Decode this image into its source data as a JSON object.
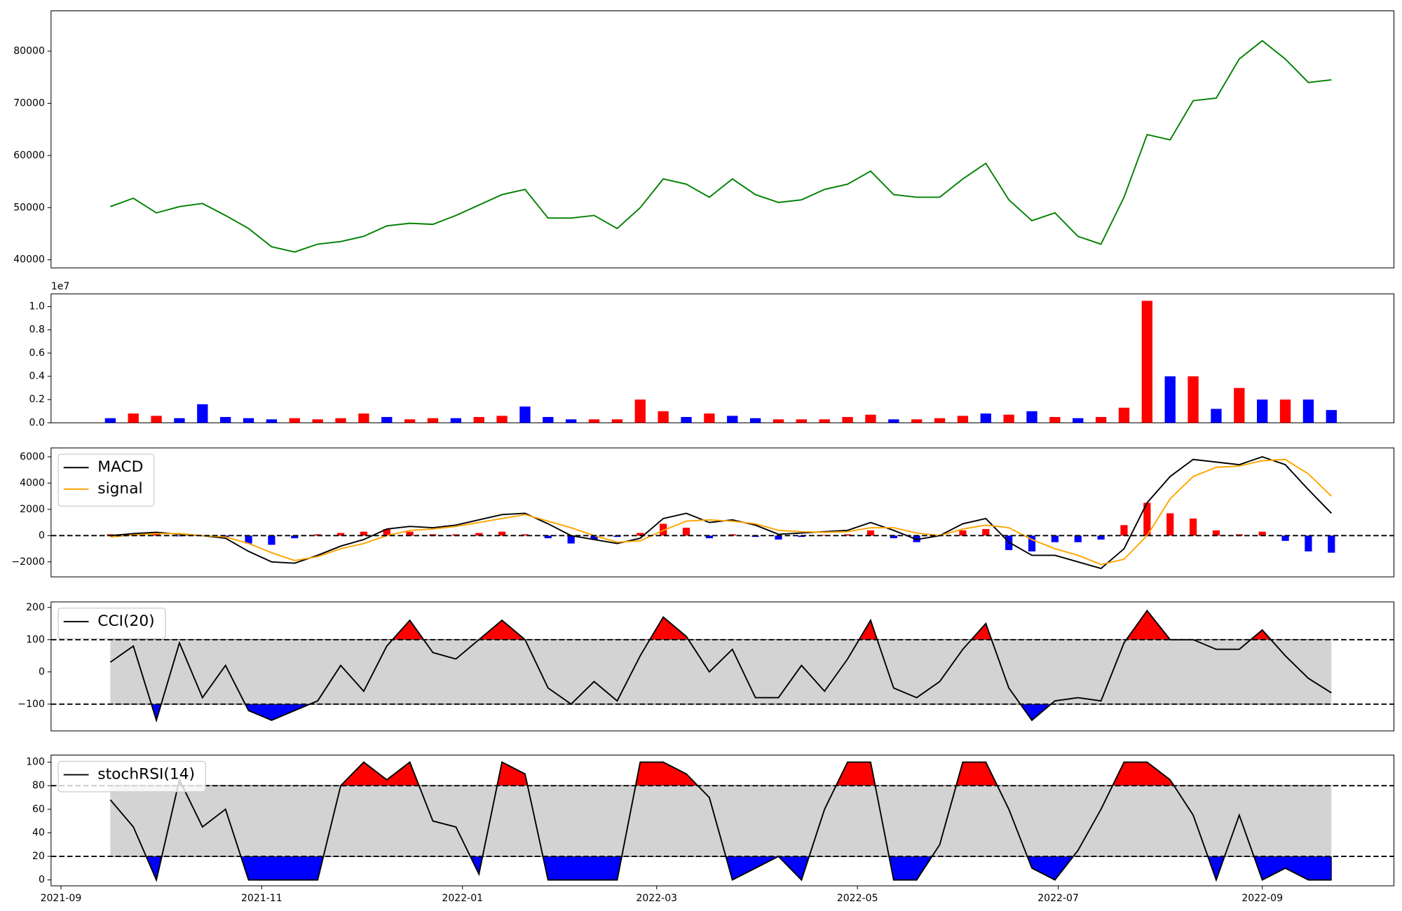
{
  "chart_data": [
    {
      "type": "line",
      "color": "#008000",
      "xlim": [
        18868,
        19276
      ],
      "ylim": [
        38450,
        87730
      ],
      "yticks": [
        40000,
        50000,
        60000,
        70000,
        80000
      ],
      "x": [
        18886,
        18893,
        18900,
        18907,
        18914,
        18921,
        18928,
        18935,
        18942,
        18949,
        18956,
        18963,
        18970,
        18977,
        18984,
        18991,
        18998,
        19005,
        19012,
        19019,
        19026,
        19033,
        19040,
        19047,
        19054,
        19061,
        19068,
        19075,
        19082,
        19089,
        19096,
        19103,
        19110,
        19117,
        19124,
        19131,
        19138,
        19145,
        19152,
        19159,
        19166,
        19173,
        19180,
        19187,
        19194,
        19201,
        19208,
        19215,
        19222,
        19229,
        19236,
        19243,
        19250,
        19257
      ],
      "values": [
        50200,
        51800,
        49000,
        50200,
        50800,
        48500,
        46000,
        42500,
        41500,
        43000,
        43500,
        44500,
        46500,
        47000,
        46800,
        48500,
        50500,
        52500,
        53500,
        48000,
        48000,
        48500,
        46000,
        50000,
        55500,
        54500,
        52000,
        55500,
        52500,
        51000,
        51500,
        53500,
        54500,
        57000,
        52500,
        52000,
        52000,
        55500,
        58500,
        51500,
        47500,
        49000,
        44500,
        43000,
        52000,
        64000,
        63000,
        70500,
        71000,
        78500,
        82000,
        78500,
        74000,
        74500
      ]
    },
    {
      "type": "bar",
      "offset_label": "1e7",
      "xlim": [
        18868,
        19276
      ],
      "ylim": [
        0,
        1.11
      ],
      "yticks": [
        {
          "value": 0,
          "label": "0.0"
        },
        {
          "value": 0.2,
          "label": "0.2"
        },
        {
          "value": 0.4,
          "label": "0.4"
        },
        {
          "value": 0.6,
          "label": "0.6"
        },
        {
          "value": 0.8,
          "label": "0.8"
        },
        {
          "value": 1,
          "label": "1.0"
        }
      ],
      "x": [
        18886,
        18893,
        18900,
        18907,
        18914,
        18921,
        18928,
        18935,
        18942,
        18949,
        18956,
        18963,
        18970,
        18977,
        18984,
        18991,
        18998,
        19005,
        19012,
        19019,
        19026,
        19033,
        19040,
        19047,
        19054,
        19061,
        19068,
        19075,
        19082,
        19089,
        19096,
        19103,
        19110,
        19117,
        19124,
        19131,
        19138,
        19145,
        19152,
        19159,
        19166,
        19173,
        19180,
        19187,
        19194,
        19201,
        19208,
        19215,
        19222,
        19229,
        19236,
        19243,
        19250,
        19257
      ],
      "values": [
        0.04,
        0.08,
        0.06,
        0.04,
        0.16,
        0.05,
        0.04,
        0.03,
        0.04,
        0.03,
        0.04,
        0.08,
        0.05,
        0.03,
        0.04,
        0.04,
        0.05,
        0.06,
        0.14,
        0.05,
        0.03,
        0.03,
        0.03,
        0.2,
        0.1,
        0.05,
        0.08,
        0.06,
        0.04,
        0.03,
        0.03,
        0.03,
        0.05,
        0.07,
        0.03,
        0.03,
        0.04,
        0.06,
        0.08,
        0.07,
        0.1,
        0.05,
        0.04,
        0.05,
        0.13,
        1.05,
        0.4,
        0.4,
        0.12,
        0.3,
        0.2,
        0.2,
        0.2,
        0.11
      ],
      "colors": [
        "#0000ff",
        "#ff0000",
        "#ff0000",
        "#0000ff",
        "#0000ff",
        "#0000ff",
        "#0000ff",
        "#0000ff",
        "#ff0000",
        "#ff0000",
        "#ff0000",
        "#ff0000",
        "#0000ff",
        "#ff0000",
        "#ff0000",
        "#0000ff",
        "#ff0000",
        "#ff0000",
        "#0000ff",
        "#0000ff",
        "#0000ff",
        "#ff0000",
        "#ff0000",
        "#ff0000",
        "#ff0000",
        "#0000ff",
        "#ff0000",
        "#0000ff",
        "#0000ff",
        "#ff0000",
        "#ff0000",
        "#ff0000",
        "#ff0000",
        "#ff0000",
        "#0000ff",
        "#ff0000",
        "#ff0000",
        "#ff0000",
        "#0000ff",
        "#ff0000",
        "#0000ff",
        "#ff0000",
        "#0000ff",
        "#ff0000",
        "#ff0000",
        "#ff0000",
        "#0000ff",
        "#ff0000",
        "#0000ff",
        "#ff0000",
        "#0000ff",
        "#ff0000",
        "#0000ff",
        "#0000ff"
      ]
    },
    {
      "type": "line",
      "legend": "upper left",
      "xlim": [
        18868,
        19276
      ],
      "ylim": [
        -3140,
        6680
      ],
      "yticks": [
        {
          "value": -2000,
          "label": "−2000"
        },
        0,
        2000,
        4000,
        6000
      ],
      "hlines": [
        0
      ],
      "x": [
        18886,
        18893,
        18900,
        18907,
        18914,
        18921,
        18928,
        18935,
        18942,
        18949,
        18956,
        18963,
        18970,
        18977,
        18984,
        18991,
        18998,
        19005,
        19012,
        19019,
        19026,
        19033,
        19040,
        19047,
        19054,
        19061,
        19068,
        19075,
        19082,
        19089,
        19096,
        19103,
        19110,
        19117,
        19124,
        19131,
        19138,
        19145,
        19152,
        19159,
        19166,
        19173,
        19180,
        19187,
        19194,
        19201,
        19208,
        19215,
        19222,
        19229,
        19236,
        19243,
        19250,
        19257
      ],
      "histogram": [
        100,
        100,
        100,
        -50,
        0,
        -100,
        -600,
        -700,
        -200,
        100,
        200,
        300,
        500,
        300,
        100,
        100,
        200,
        300,
        100,
        -200,
        -600,
        -300,
        -100,
        200,
        900,
        600,
        -200,
        100,
        -100,
        -300,
        -100,
        50,
        100,
        400,
        -200,
        -500,
        0,
        400,
        500,
        -1100,
        -1200,
        -500,
        -500,
        -300,
        800,
        2500,
        1700,
        1300,
        400,
        100,
        300,
        -400,
        -1200,
        -1300
      ],
      "hist_colors": {
        "up": "#ff0000",
        "down": "#0000ff"
      },
      "series": [
        {
          "name": "MACD",
          "color": "#000000",
          "values": [
            0,
            150,
            250,
            100,
            0,
            -200,
            -1200,
            -2000,
            -2100,
            -1500,
            -800,
            -300,
            500,
            700,
            600,
            800,
            1200,
            1600,
            1700,
            900,
            0,
            -300,
            -600,
            -200,
            1300,
            1700,
            1000,
            1200,
            800,
            100,
            200,
            300,
            400,
            1000,
            400,
            -300,
            0,
            900,
            1300,
            -500,
            -1500,
            -1500,
            -2000,
            -2500,
            -1000,
            2500,
            4500,
            5800,
            5600,
            5400,
            6000,
            5400,
            3500,
            1700
          ]
        },
        {
          "name": "signal",
          "color": "#ffa500",
          "values": [
            -100,
            50,
            150,
            150,
            0,
            -100,
            -600,
            -1300,
            -1900,
            -1600,
            -1000,
            -600,
            0,
            400,
            500,
            700,
            1000,
            1300,
            1600,
            1100,
            600,
            0,
            -500,
            -400,
            400,
            1100,
            1200,
            1100,
            900,
            400,
            300,
            250,
            300,
            600,
            600,
            200,
            0,
            500,
            800,
            600,
            -300,
            -1000,
            -1500,
            -2200,
            -1800,
            0,
            2800,
            4500,
            5200,
            5300,
            5700,
            5800,
            4700,
            3000
          ]
        }
      ]
    },
    {
      "type": "line",
      "legend": "upper left",
      "xlim": [
        18868,
        19276
      ],
      "ylim": [
        -183,
        217
      ],
      "yticks": [
        {
          "value": -100,
          "label": "−100"
        },
        0,
        100,
        200
      ],
      "hlines": [
        -100,
        100
      ],
      "fill": {
        "below": "#0000ff",
        "above": "#ff0000",
        "band": "#d3d3d3"
      },
      "x": [
        18886,
        18893,
        18900,
        18907,
        18914,
        18921,
        18928,
        18935,
        18942,
        18949,
        18956,
        18963,
        18970,
        18977,
        18984,
        18991,
        18998,
        19005,
        19012,
        19019,
        19026,
        19033,
        19040,
        19047,
        19054,
        19061,
        19068,
        19075,
        19082,
        19089,
        19096,
        19103,
        19110,
        19117,
        19124,
        19131,
        19138,
        19145,
        19152,
        19159,
        19166,
        19173,
        19180,
        19187,
        19194,
        19201,
        19208,
        19215,
        19222,
        19229,
        19236,
        19243,
        19250,
        19257
      ],
      "series": [
        {
          "name": "CCI(20)",
          "color": "#000000",
          "values": [
            30,
            80,
            -150,
            90,
            -80,
            20,
            -120,
            -150,
            -120,
            -90,
            20,
            -60,
            80,
            160,
            60,
            40,
            100,
            160,
            100,
            -50,
            -100,
            -30,
            -90,
            50,
            170,
            110,
            0,
            70,
            -80,
            -80,
            20,
            -60,
            40,
            160,
            -50,
            -80,
            -30,
            70,
            150,
            -50,
            -150,
            -90,
            -80,
            -90,
            90,
            190,
            100,
            100,
            70,
            70,
            130,
            50,
            -20,
            -65
          ]
        }
      ]
    },
    {
      "type": "line",
      "legend": "upper left",
      "xlim": [
        18868,
        19276
      ],
      "ylim": [
        -5,
        106
      ],
      "yticks": [
        0,
        20,
        40,
        60,
        80,
        100
      ],
      "hlines": [
        20,
        80
      ],
      "fill": {
        "below": "#0000ff",
        "above": "#ff0000",
        "band": "#d3d3d3"
      },
      "xticks": [
        {
          "value": 18871,
          "label": "2021-09"
        },
        {
          "value": 18932,
          "label": "2021-11"
        },
        {
          "value": 18993,
          "label": "2022-01"
        },
        {
          "value": 19052,
          "label": "2022-03"
        },
        {
          "value": 19113,
          "label": "2022-05"
        },
        {
          "value": 19174,
          "label": "2022-07"
        },
        {
          "value": 19236,
          "label": "2022-09"
        }
      ],
      "x": [
        18886,
        18893,
        18900,
        18907,
        18914,
        18921,
        18928,
        18935,
        18942,
        18949,
        18956,
        18963,
        18970,
        18977,
        18984,
        18991,
        18998,
        19005,
        19012,
        19019,
        19026,
        19033,
        19040,
        19047,
        19054,
        19061,
        19068,
        19075,
        19082,
        19089,
        19096,
        19103,
        19110,
        19117,
        19124,
        19131,
        19138,
        19145,
        19152,
        19159,
        19166,
        19173,
        19180,
        19187,
        19194,
        19201,
        19208,
        19215,
        19222,
        19229,
        19236,
        19243,
        19250,
        19257
      ],
      "series": [
        {
          "name": "stochRSI(14)",
          "color": "#000000",
          "values": [
            68,
            45,
            0,
            85,
            45,
            60,
            0,
            0,
            0,
            0,
            80,
            100,
            85,
            100,
            50,
            45,
            5,
            100,
            90,
            0,
            0,
            0,
            0,
            100,
            100,
            90,
            70,
            0,
            10,
            20,
            0,
            60,
            100,
            100,
            0,
            0,
            30,
            100,
            100,
            60,
            10,
            0,
            25,
            60,
            100,
            100,
            85,
            55,
            0,
            55,
            0,
            10,
            0,
            0
          ]
        }
      ]
    }
  ]
}
